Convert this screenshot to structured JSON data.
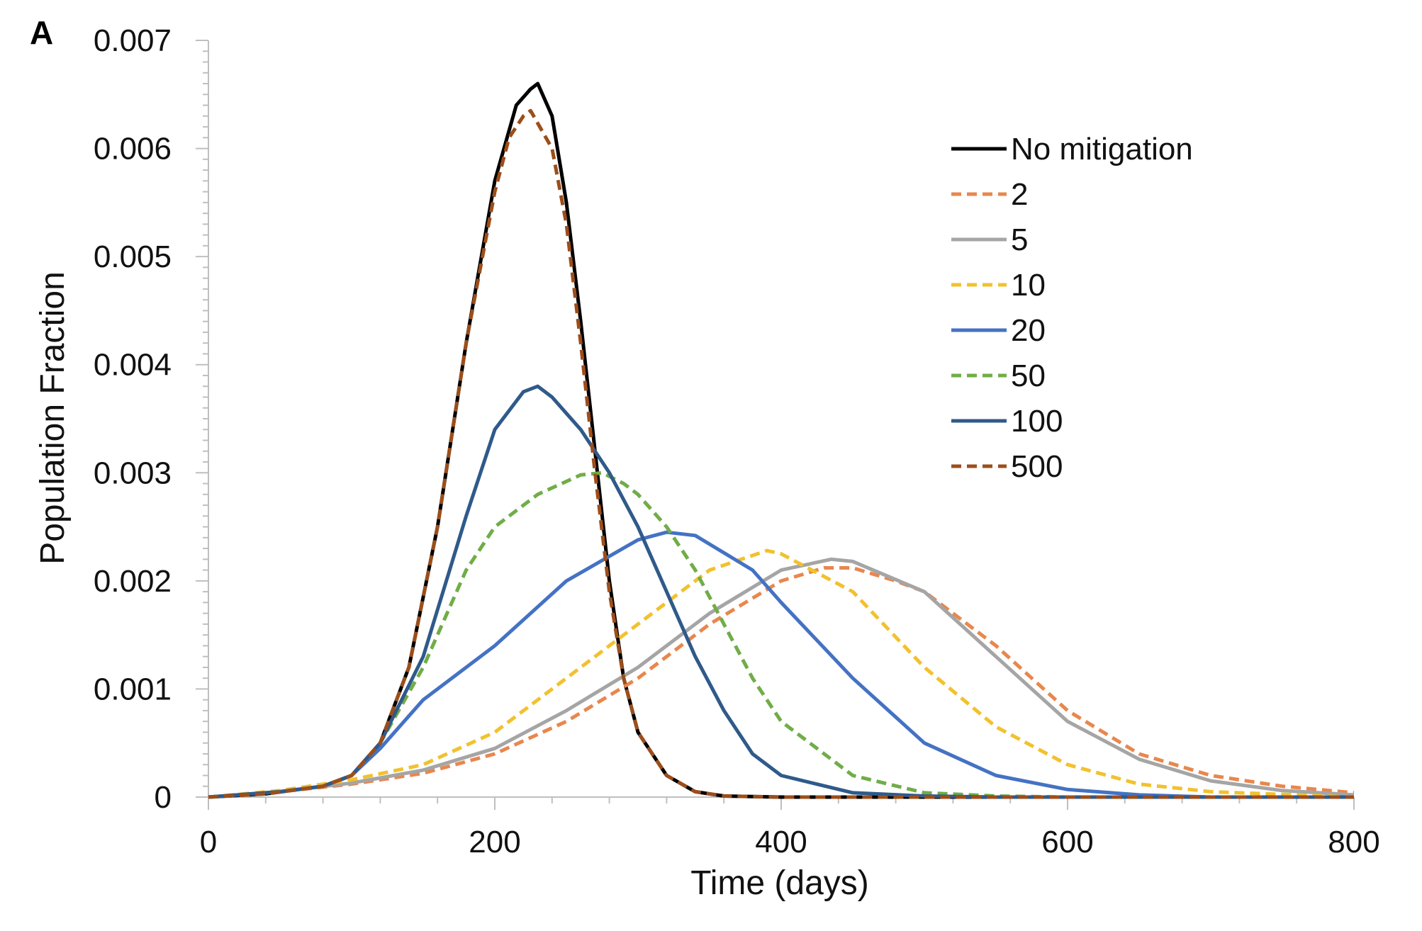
{
  "panel_label": "A",
  "chart_data": {
    "type": "line",
    "title": "",
    "xlabel": "Time (days)",
    "ylabel": "Population Fraction",
    "xlim": [
      0,
      800
    ],
    "ylim": [
      0,
      0.007
    ],
    "x_ticks": [
      0,
      200,
      400,
      600,
      800
    ],
    "x_tick_labels": [
      "0",
      "200",
      "400",
      "600",
      "800"
    ],
    "y_ticks": [
      0,
      0.001,
      0.002,
      0.003,
      0.004,
      0.005,
      0.006,
      0.007
    ],
    "y_tick_labels": [
      "0",
      "0.001",
      "0.002",
      "0.003",
      "0.004",
      "0.005",
      "0.006",
      "0.007"
    ],
    "grid": false,
    "legend_position": "top-right",
    "series": [
      {
        "name": "No mitigation",
        "color": "#000000",
        "dash": "solid",
        "x": [
          0,
          40,
          80,
          100,
          120,
          140,
          160,
          180,
          200,
          215,
          225,
          230,
          240,
          250,
          260,
          270,
          280,
          290,
          300,
          320,
          340,
          360,
          400,
          800
        ],
        "y": [
          0,
          3e-05,
          0.0001,
          0.0002,
          0.0005,
          0.0012,
          0.0025,
          0.0042,
          0.0057,
          0.0064,
          0.00655,
          0.0066,
          0.0063,
          0.0055,
          0.0044,
          0.0032,
          0.002,
          0.0011,
          0.0006,
          0.0002,
          5e-05,
          1e-05,
          0,
          0
        ]
      },
      {
        "name": "2",
        "color": "#e8874d",
        "dash": "dashed",
        "x": [
          0,
          50,
          100,
          150,
          200,
          250,
          300,
          350,
          400,
          430,
          450,
          480,
          500,
          550,
          600,
          650,
          700,
          750,
          800
        ],
        "y": [
          0,
          5e-05,
          0.00012,
          0.00022,
          0.0004,
          0.0007,
          0.0011,
          0.0016,
          0.002,
          0.00212,
          0.00212,
          0.002,
          0.0019,
          0.0014,
          0.0008,
          0.0004,
          0.0002,
          0.0001,
          4e-05
        ]
      },
      {
        "name": "5",
        "color": "#a5a5a5",
        "dash": "solid",
        "x": [
          0,
          50,
          100,
          150,
          200,
          250,
          300,
          350,
          400,
          435,
          450,
          500,
          550,
          600,
          650,
          700,
          750,
          800
        ],
        "y": [
          0,
          5e-05,
          0.00013,
          0.00025,
          0.00045,
          0.0008,
          0.0012,
          0.0017,
          0.0021,
          0.0022,
          0.00218,
          0.0019,
          0.0013,
          0.0007,
          0.00035,
          0.00015,
          6e-05,
          2e-05
        ]
      },
      {
        "name": "10",
        "color": "#f2c12e",
        "dash": "dashed",
        "x": [
          0,
          50,
          100,
          150,
          200,
          250,
          300,
          350,
          390,
          400,
          450,
          500,
          550,
          600,
          650,
          700,
          800
        ],
        "y": [
          0,
          6e-05,
          0.00016,
          0.0003,
          0.0006,
          0.0011,
          0.0016,
          0.0021,
          0.00228,
          0.00225,
          0.0019,
          0.0012,
          0.00065,
          0.0003,
          0.00012,
          5e-05,
          0
        ]
      },
      {
        "name": "20",
        "color": "#4472c4",
        "dash": "solid",
        "x": [
          0,
          50,
          80,
          100,
          120,
          150,
          200,
          250,
          300,
          320,
          340,
          380,
          400,
          450,
          500,
          550,
          600,
          650,
          700,
          800
        ],
        "y": [
          0,
          5e-05,
          0.0001,
          0.0002,
          0.00045,
          0.0009,
          0.0014,
          0.002,
          0.00238,
          0.00245,
          0.00242,
          0.0021,
          0.0018,
          0.0011,
          0.0005,
          0.0002,
          7e-05,
          2e-05,
          0,
          0
        ]
      },
      {
        "name": "50",
        "color": "#70ad47",
        "dash": "dashed",
        "x": [
          0,
          50,
          80,
          100,
          120,
          150,
          180,
          200,
          230,
          260,
          275,
          290,
          300,
          320,
          340,
          360,
          380,
          400,
          450,
          500,
          550,
          600,
          800
        ],
        "y": [
          0,
          5e-05,
          0.0001,
          0.0002,
          0.0005,
          0.0012,
          0.0021,
          0.0025,
          0.0028,
          0.00298,
          0.003,
          0.0029,
          0.0028,
          0.0025,
          0.0021,
          0.0016,
          0.0011,
          0.0007,
          0.0002,
          4e-05,
          1e-05,
          0,
          0
        ]
      },
      {
        "name": "100",
        "color": "#2f5a8a",
        "dash": "solid",
        "x": [
          0,
          50,
          80,
          100,
          120,
          150,
          180,
          200,
          220,
          230,
          240,
          260,
          280,
          300,
          320,
          340,
          360,
          380,
          400,
          450,
          500,
          550,
          800
        ],
        "y": [
          0,
          5e-05,
          0.0001,
          0.0002,
          0.0005,
          0.0013,
          0.0026,
          0.0034,
          0.00375,
          0.0038,
          0.0037,
          0.0034,
          0.003,
          0.0025,
          0.0019,
          0.0013,
          0.0008,
          0.0004,
          0.0002,
          4e-05,
          1e-05,
          0,
          0
        ]
      },
      {
        "name": "500",
        "color": "#9c4e1b",
        "dash": "dashed",
        "x": [
          0,
          40,
          80,
          100,
          120,
          140,
          160,
          180,
          200,
          210,
          220,
          225,
          240,
          250,
          260,
          270,
          280,
          290,
          300,
          320,
          340,
          360,
          400,
          800
        ],
        "y": [
          0,
          3e-05,
          0.0001,
          0.0002,
          0.0005,
          0.0012,
          0.0025,
          0.0042,
          0.0056,
          0.0061,
          0.0063,
          0.00635,
          0.006,
          0.0053,
          0.0042,
          0.003,
          0.0019,
          0.0011,
          0.0006,
          0.0002,
          5e-05,
          1e-05,
          0,
          0
        ]
      }
    ]
  }
}
